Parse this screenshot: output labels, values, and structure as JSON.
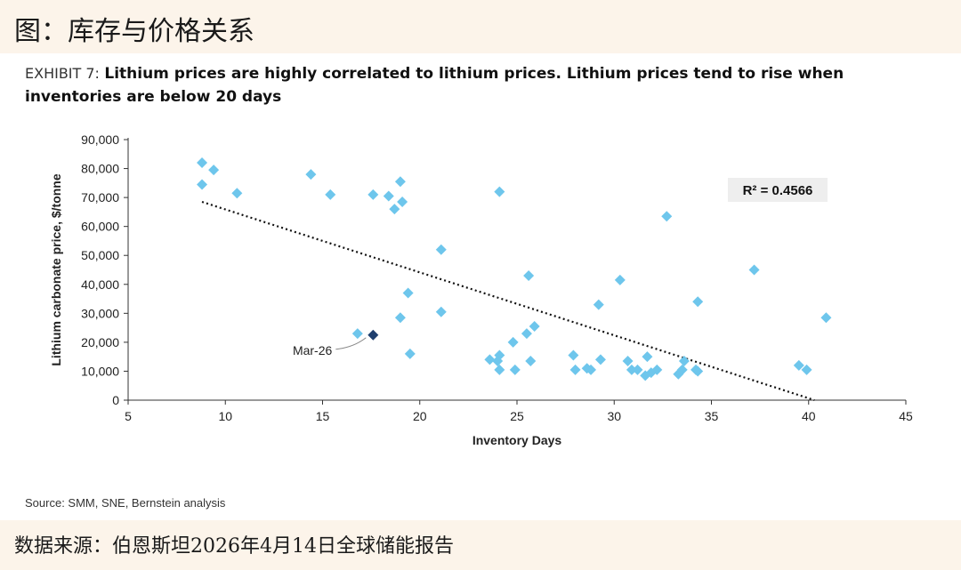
{
  "page_title": "图：库存与价格关系",
  "exhibit_label": "EXHIBIT 7:",
  "source_note": "Source: SMM, SNE, Bernstein analysis",
  "footer_note": "数据来源：伯恩斯坦2026年4月14日全球储能报告",
  "chart_data": {
    "type": "scatter",
    "title": "Lithium prices are highly correlated to lithium prices. Lithium prices tend to rise when inventories are below 20 days",
    "xlabel": "Inventory Days",
    "ylabel": "Lithium carbonate price, $/tonne",
    "xlim": [
      5,
      45
    ],
    "ylim": [
      0,
      90000
    ],
    "xticks": [
      5,
      10,
      15,
      20,
      25,
      30,
      35,
      40,
      45
    ],
    "yticks": [
      0,
      10000,
      20000,
      30000,
      40000,
      50000,
      60000,
      70000,
      80000,
      90000
    ],
    "ytick_labels": [
      "0",
      "10,000",
      "20,000",
      "30,000",
      "40,000",
      "50,000",
      "60,000",
      "70,000",
      "80,000",
      "90,000"
    ],
    "grid": false,
    "point_color": "#6ec6ec",
    "highlight_color": "#1f3f6e",
    "points": [
      [
        8.8,
        82000
      ],
      [
        8.8,
        74500
      ],
      [
        9.4,
        79500
      ],
      [
        10.6,
        71500
      ],
      [
        14.4,
        78000
      ],
      [
        15.4,
        71000
      ],
      [
        17.6,
        71000
      ],
      [
        18.4,
        70500
      ],
      [
        18.7,
        66000
      ],
      [
        19.0,
        75500
      ],
      [
        19.1,
        68500
      ],
      [
        19.4,
        37000
      ],
      [
        19.0,
        28500
      ],
      [
        19.5,
        16000
      ],
      [
        16.8,
        23000
      ],
      [
        21.1,
        52000
      ],
      [
        21.1,
        30500
      ],
      [
        23.6,
        14000
      ],
      [
        24.0,
        13500
      ],
      [
        24.1,
        15500
      ],
      [
        24.1,
        10500
      ],
      [
        24.1,
        72000
      ],
      [
        24.8,
        20000
      ],
      [
        24.9,
        10500
      ],
      [
        25.5,
        23000
      ],
      [
        25.6,
        43000
      ],
      [
        25.7,
        13500
      ],
      [
        25.9,
        25500
      ],
      [
        27.9,
        15500
      ],
      [
        28.0,
        10500
      ],
      [
        28.6,
        11000
      ],
      [
        28.8,
        10500
      ],
      [
        29.2,
        33000
      ],
      [
        29.3,
        14000
      ],
      [
        30.3,
        41500
      ],
      [
        30.7,
        13500
      ],
      [
        30.9,
        10500
      ],
      [
        31.2,
        10500
      ],
      [
        31.6,
        8500
      ],
      [
        31.7,
        15000
      ],
      [
        31.9,
        9500
      ],
      [
        32.2,
        10500
      ],
      [
        32.7,
        63500
      ],
      [
        33.3,
        9000
      ],
      [
        33.5,
        10500
      ],
      [
        33.6,
        13500
      ],
      [
        34.2,
        10500
      ],
      [
        34.3,
        10000
      ],
      [
        34.3,
        34000
      ],
      [
        37.2,
        45000
      ],
      [
        39.5,
        12000
      ],
      [
        39.9,
        10500
      ],
      [
        40.9,
        28500
      ]
    ],
    "highlight_point": {
      "x": 17.6,
      "y": 22500,
      "label": "Mar-26"
    },
    "trendline": {
      "x": [
        8.8,
        40.3
      ],
      "y": [
        68500,
        0
      ],
      "style": "dotted"
    },
    "annotation": "R² = 0.4566"
  }
}
